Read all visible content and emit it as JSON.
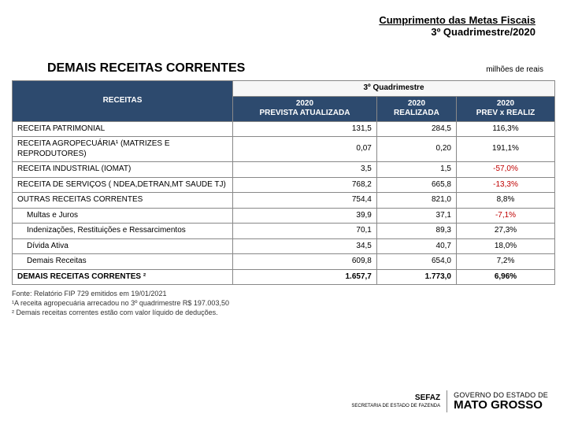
{
  "header": {
    "line1": "Cumprimento das Metas Fiscais",
    "line2": "3º Quadrimestre/2020"
  },
  "title": "DEMAIS RECEITAS CORRENTES",
  "unit": "milhões de reais",
  "tableHeaders": {
    "receitas": "RECEITAS",
    "group": "3º Quadrimestre",
    "col1a": "2020",
    "col1b": "PREVISTA ATUALIZADA",
    "col2a": "2020",
    "col2b": "REALIZADA",
    "col3a": "2020",
    "col3b": "PREV x REALIZ"
  },
  "rows": [
    {
      "label": "RECEITA PATRIMONIAL",
      "v1": "131,5",
      "v2": "284,5",
      "v3": "116,3%",
      "neg": false,
      "indent": false
    },
    {
      "label": "RECEITA AGROPECUÁRIA¹ (MATRIZES E REPRODUTORES)",
      "v1": "0,07",
      "v2": "0,20",
      "v3": "191,1%",
      "neg": false,
      "indent": false
    },
    {
      "label": "RECEITA INDUSTRIAL (IOMAT)",
      "v1": "3,5",
      "v2": "1,5",
      "v3": "-57,0%",
      "neg": true,
      "indent": false
    },
    {
      "label": "RECEITA DE SERVIÇOS ( NDEA,DETRAN,MT SAUDE  TJ)",
      "v1": "768,2",
      "v2": "665,8",
      "v3": "-13,3%",
      "neg": true,
      "indent": false
    },
    {
      "label": "OUTRAS RECEITAS CORRENTES",
      "v1": "754,4",
      "v2": "821,0",
      "v3": "8,8%",
      "neg": false,
      "indent": false
    },
    {
      "label": "Multas e Juros",
      "v1": "39,9",
      "v2": "37,1",
      "v3": "-7,1%",
      "neg": true,
      "indent": true
    },
    {
      "label": "Indenizações, Restituições e Ressarcimentos",
      "v1": "70,1",
      "v2": "89,3",
      "v3": "27,3%",
      "neg": false,
      "indent": true
    },
    {
      "label": "Dívida Ativa",
      "v1": "34,5",
      "v2": "40,7",
      "v3": "18,0%",
      "neg": false,
      "indent": true
    },
    {
      "label": "Demais Receitas",
      "v1": "609,8",
      "v2": "654,0",
      "v3": "7,2%",
      "neg": false,
      "indent": true
    }
  ],
  "total": {
    "label": "DEMAIS RECEITAS CORRENTES ²",
    "v1": "1.657,7",
    "v2": "1.773,0",
    "v3": "6,96%"
  },
  "footnotes": [
    "Fonte: Relatório FIP 729 emitidos em 19/01/2021",
    "¹A receita agropecuária arrecadou no 3º quadrimestre R$ 197.003,50",
    "² Demais receitas correntes estão com valor líquido de deduções."
  ],
  "footer": {
    "sefazTop": "SEFAZ",
    "sefazSub": "SECRETARIA DE\nESTADO DE FAZENDA",
    "govTop": "GOVERNO DO ESTADO DE",
    "govMain": "MATO GROSSO"
  },
  "colors": {
    "headerBg": "#2d4a6e",
    "neg": "#c00000"
  }
}
